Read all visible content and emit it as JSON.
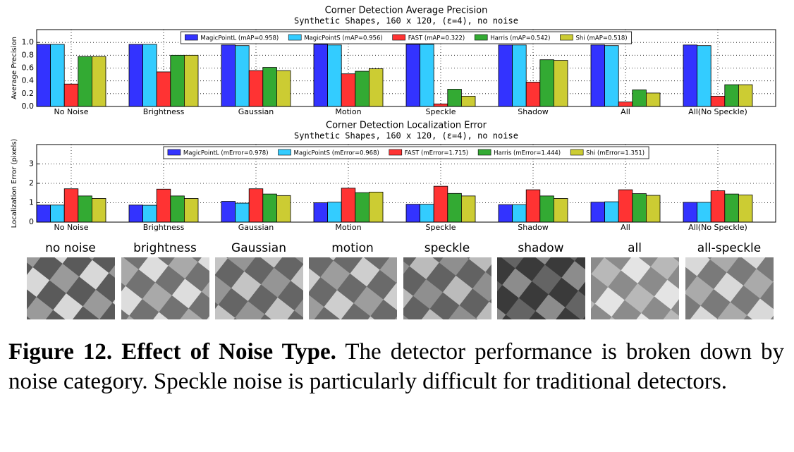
{
  "chart_data": [
    {
      "type": "bar",
      "title": "Corner Detection Average Precision",
      "subtitle": "Synthetic Shapes, 160 x 120, (ε=4), no noise",
      "y_label": "Average Precision",
      "categories": [
        "No Noise",
        "Brightness",
        "Gaussian",
        "Motion",
        "Speckle",
        "Shadow",
        "All",
        "All(No Speckle)"
      ],
      "series": [
        {
          "name": "MagicPointL (mAP=0.958)",
          "color": "#3333ff",
          "values": [
            0.97,
            0.97,
            0.96,
            0.97,
            0.97,
            0.96,
            0.96,
            0.96
          ]
        },
        {
          "name": "MagicPointS (mAP=0.956)",
          "color": "#33ccff",
          "values": [
            0.97,
            0.97,
            0.95,
            0.96,
            0.97,
            0.96,
            0.95,
            0.95
          ]
        },
        {
          "name": "FAST (mAP=0.322)",
          "color": "#ff3333",
          "values": [
            0.35,
            0.54,
            0.56,
            0.51,
            0.04,
            0.38,
            0.07,
            0.16
          ]
        },
        {
          "name": "Harris (mAP=0.542)",
          "color": "#33aa33",
          "values": [
            0.78,
            0.8,
            0.61,
            0.55,
            0.27,
            0.73,
            0.26,
            0.34
          ]
        },
        {
          "name": "Shi (mAP=0.518)",
          "color": "#cccc33",
          "values": [
            0.78,
            0.8,
            0.56,
            0.59,
            0.16,
            0.72,
            0.21,
            0.34
          ]
        }
      ],
      "ylim": [
        0,
        1.2
      ],
      "yticks": [
        {
          "value": 0,
          "label": "0.0"
        },
        0.2,
        0.4,
        0.6,
        0.8,
        {
          "value": 1,
          "label": "1.0"
        }
      ],
      "grid": true,
      "legend": "upper center"
    },
    {
      "type": "bar",
      "title": "Corner Detection Localization Error",
      "subtitle": "Synthetic Shapes, 160 x 120, (ε=4), no noise",
      "y_label": "Localization Error (pixels)",
      "categories": [
        "No Noise",
        "Brightness",
        "Gaussian",
        "Motion",
        "Speckle",
        "Shadow",
        "All",
        "All(No Speckle)"
      ],
      "series": [
        {
          "name": "MagicPointL (mError=0.978)",
          "color": "#3333ff",
          "values": [
            0.88,
            0.88,
            1.07,
            1.0,
            0.92,
            0.9,
            1.03,
            1.02
          ]
        },
        {
          "name": "MagicPointS (mError=0.968)",
          "color": "#33ccff",
          "values": [
            0.88,
            0.87,
            0.98,
            1.03,
            0.92,
            0.9,
            1.05,
            1.02
          ]
        },
        {
          "name": "FAST (mError=1.715)",
          "color": "#ff3333",
          "values": [
            1.72,
            1.7,
            1.72,
            1.75,
            1.85,
            1.67,
            1.67,
            1.62
          ]
        },
        {
          "name": "Harris (mError=1.444)",
          "color": "#33aa33",
          "values": [
            1.35,
            1.35,
            1.45,
            1.52,
            1.48,
            1.35,
            1.47,
            1.45
          ]
        },
        {
          "name": "Shi (mError=1.351)",
          "color": "#cccc33",
          "values": [
            1.22,
            1.22,
            1.37,
            1.55,
            1.35,
            1.22,
            1.38,
            1.4
          ]
        }
      ],
      "ylim": [
        0,
        4
      ],
      "yticks": [
        0,
        1,
        2,
        3
      ],
      "grid": true,
      "legend": "upper center"
    }
  ],
  "thumbnails": [
    "no noise",
    "brightness",
    "Gaussian",
    "motion",
    "speckle",
    "shadow",
    "all",
    "all-speckle"
  ],
  "caption": {
    "label": "Figure 12.",
    "title": "Effect of Noise Type.",
    "text": "The detector performance is broken down by noise category. Speckle noise is particularly difficult for traditional detectors."
  }
}
